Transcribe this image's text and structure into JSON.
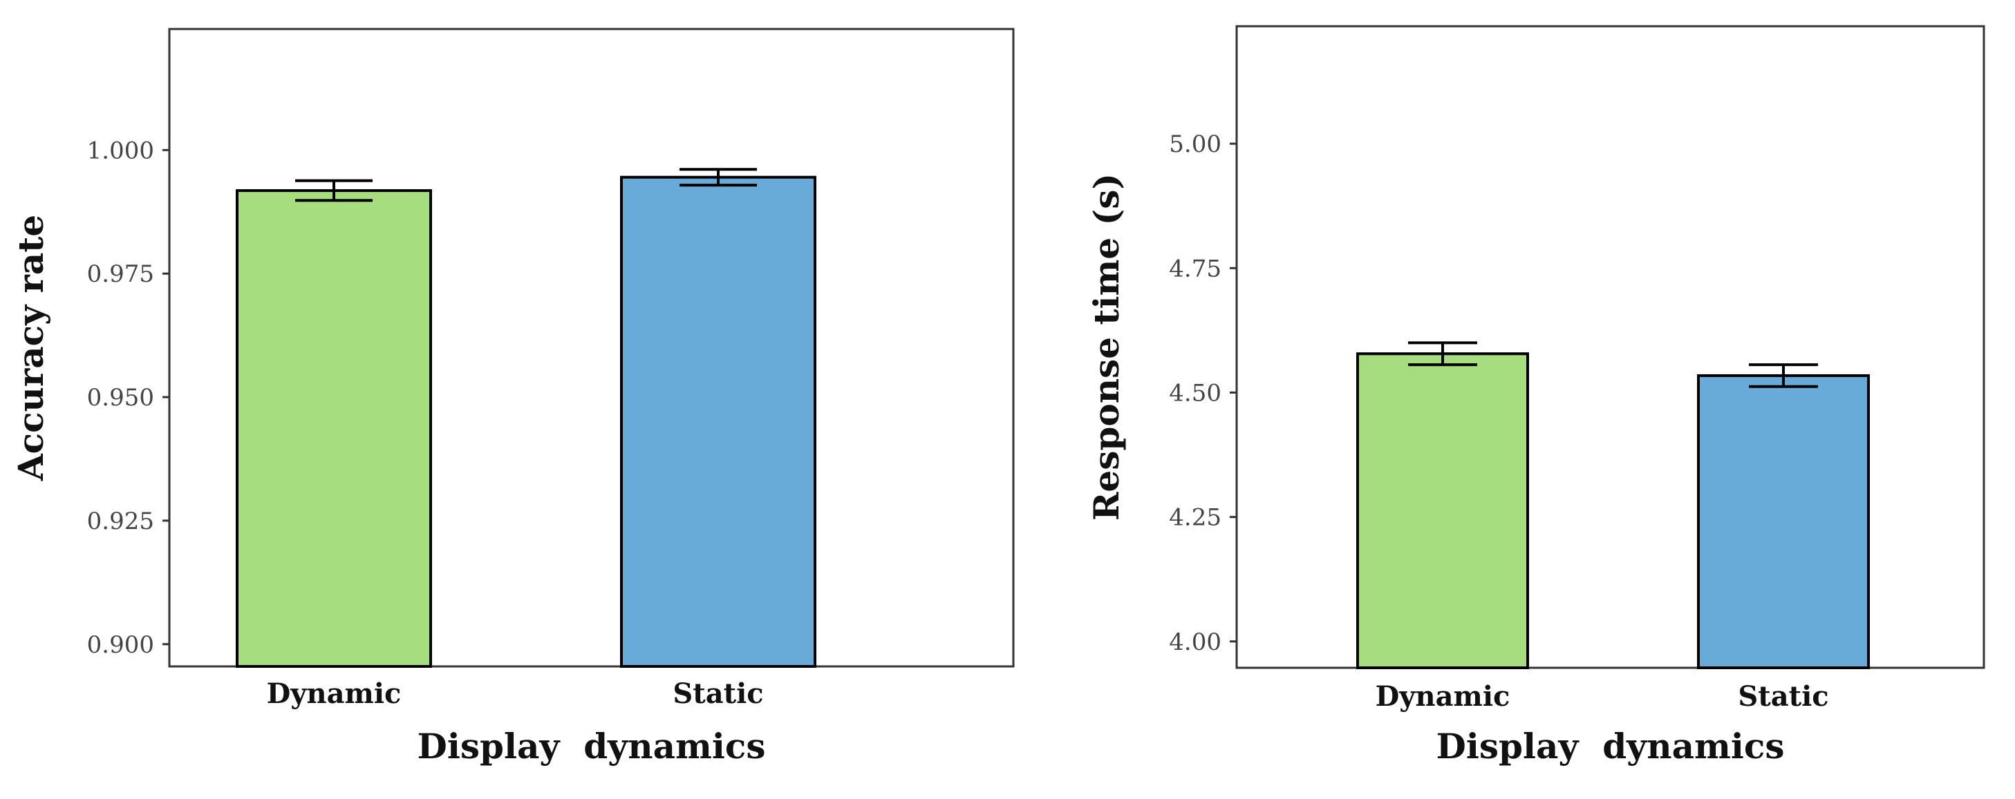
{
  "chart_data": [
    {
      "type": "bar",
      "categories": [
        "Dynamic",
        "Static"
      ],
      "values": [
        0.9918,
        0.9945
      ],
      "errors": [
        0.002,
        0.0016
      ],
      "colors": [
        "#a6dd7e",
        "#68abd8"
      ],
      "xlabel": "Display  dynamics",
      "ylabel": "Accuracy rate",
      "ylim": [
        0.8955,
        1.0245
      ],
      "yticks": [
        0.9,
        0.925,
        0.95,
        0.975,
        1.0
      ],
      "ytick_labels": [
        "0.900",
        "0.925",
        "0.950",
        "0.975",
        "1.000"
      ],
      "grid": false
    },
    {
      "type": "bar",
      "categories": [
        "Dynamic",
        "Static"
      ],
      "values": [
        4.578,
        4.534
      ],
      "errors": [
        0.022,
        0.022
      ],
      "colors": [
        "#a6dd7e",
        "#68abd8"
      ],
      "xlabel": "Display  dynamics",
      "ylabel": "Response time (s)",
      "ylim": [
        3.947,
        5.236
      ],
      "yticks": [
        4.0,
        4.25,
        4.5,
        4.75,
        5.0
      ],
      "ytick_labels": [
        "4.00",
        "4.25",
        "4.50",
        "4.75",
        "5.00"
      ],
      "grid": false
    }
  ]
}
